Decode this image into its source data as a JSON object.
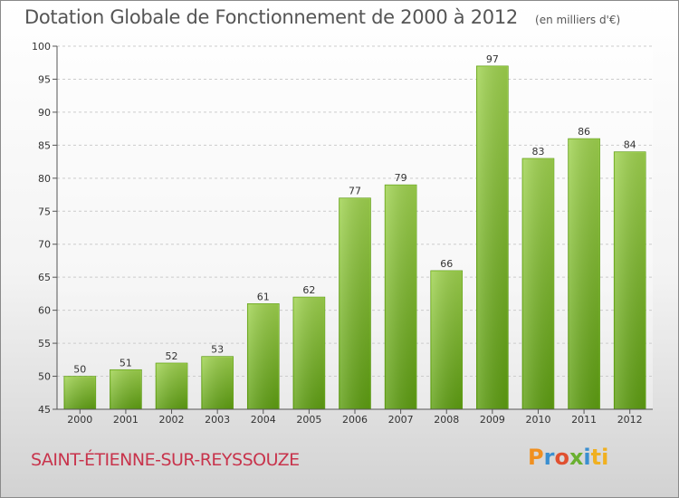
{
  "chart_data": {
    "type": "bar",
    "title": "Dotation Globale de Fonctionnement de 2000 à 2012",
    "subtitle": "(en milliers d'€)",
    "categories": [
      "2000",
      "2001",
      "2002",
      "2003",
      "2004",
      "2005",
      "2006",
      "2007",
      "2008",
      "2009",
      "2010",
      "2011",
      "2012"
    ],
    "values": [
      50,
      51,
      52,
      53,
      61,
      62,
      77,
      79,
      66,
      97,
      83,
      86,
      84
    ],
    "ylim": [
      45,
      100
    ],
    "yticks": [
      45,
      50,
      55,
      60,
      65,
      70,
      75,
      80,
      85,
      90,
      95,
      100
    ],
    "grid": true,
    "bar_color": "#7cbf2e"
  },
  "place_name": "SAINT-ÉTIENNE-SUR-REYSSOUZE",
  "logo": {
    "text": "Proxiti",
    "letters": [
      "P",
      "r",
      "o",
      "x",
      "i",
      "ti"
    ]
  }
}
